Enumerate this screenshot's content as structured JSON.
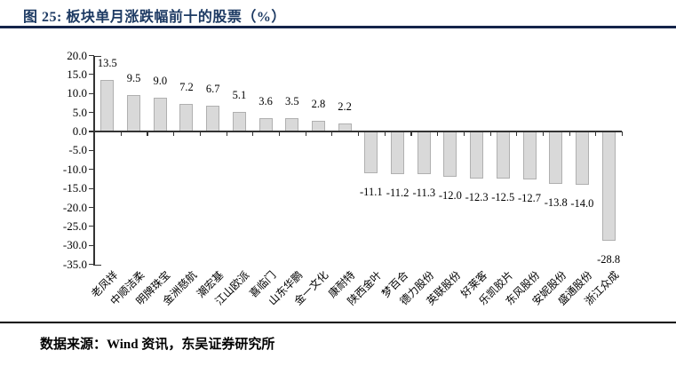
{
  "header": {
    "title": "图 25: 板块单月涨跌幅前十的股票（%）"
  },
  "footer": {
    "source": "数据来源：Wind 资讯，东吴证券研究所"
  },
  "colors": {
    "title": "#1d3a63",
    "top_rule": "#14244a",
    "bottom_rule": "#000000",
    "bar_fill": "#d9d9d9",
    "bar_border": "#b0b0b0",
    "axis": "#333333"
  },
  "chart_data": {
    "type": "bar",
    "title": "板块单月涨跌幅前十的股票（%）",
    "categories": [
      "老凤祥",
      "中顺洁柔",
      "明牌珠宝",
      "金洲慈航",
      "潮宏基",
      "江山欧派",
      "喜临门",
      "山东华鹏",
      "金一文化",
      "康耐特",
      "陕西金叶",
      "梦百合",
      "德力股份",
      "英联股份",
      "好莱客",
      "乐凯胶片",
      "东风股份",
      "安妮股份",
      "盛通股份",
      "浙江众成"
    ],
    "values": [
      13.5,
      9.5,
      9.0,
      7.2,
      6.7,
      5.1,
      3.6,
      3.5,
      2.8,
      2.2,
      -11.1,
      -11.2,
      -11.3,
      -12.0,
      -12.3,
      -12.5,
      -12.7,
      -13.8,
      -14.0,
      -28.8
    ],
    "value_labels": [
      "13.5",
      "9.5",
      "9.0",
      "7.2",
      "6.7",
      "5.1",
      "3.6",
      "3.5",
      "2.8",
      "2.2",
      "-11.1",
      "-11.2",
      "-11.3",
      "-12.0",
      "-12.3",
      "-12.5",
      "-12.7",
      "-13.8",
      "-14.0",
      "-28.8"
    ],
    "ylim": [
      -35,
      20
    ],
    "ytick_step": 5,
    "ytick_labels": [
      "20.0",
      "15.0",
      "10.0",
      "5.0",
      "0.0",
      "-5.0",
      "-10.0",
      "-15.0",
      "-20.0",
      "-25.0",
      "-30.0",
      "-35.0"
    ],
    "xlabel": "",
    "ylabel": "",
    "grid": false,
    "legend": false
  }
}
